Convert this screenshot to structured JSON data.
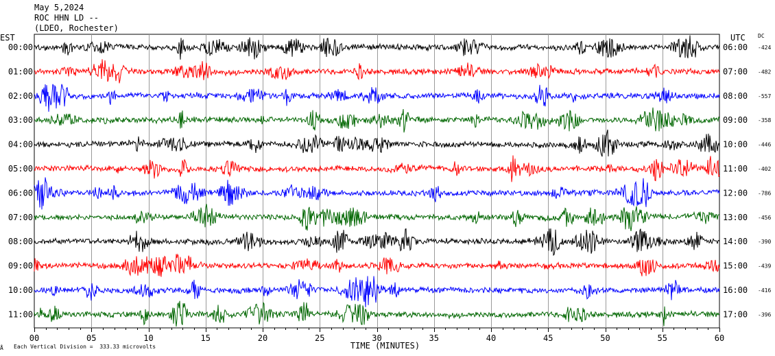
{
  "header": {
    "date": "May 5,2024",
    "station": "ROC HHN LD --",
    "network": "(LDEO, Rochester)"
  },
  "left_zone": "EST",
  "right_zone": "UTC",
  "dc_label": "DC",
  "footer": {
    "mark": "Å",
    "scale_note": "Each Vertical Division =  333.33 microvolts"
  },
  "chart_data": {
    "type": "line",
    "xlabel": "TIME (MINUTES)",
    "xlim": [
      0,
      60
    ],
    "x_ticks": [
      "00",
      "05",
      "10",
      "15",
      "20",
      "25",
      "30",
      "35",
      "40",
      "45",
      "50",
      "55",
      "60"
    ],
    "trace_colors": [
      "#000000",
      "#ff0000",
      "#0000ff",
      "#006600"
    ],
    "rows": [
      {
        "est": "00:00",
        "utc": "06:00",
        "dc": "-424"
      },
      {
        "est": "01:00",
        "utc": "07:00",
        "dc": "-482"
      },
      {
        "est": "02:00",
        "utc": "08:00",
        "dc": "-557"
      },
      {
        "est": "03:00",
        "utc": "09:00",
        "dc": "-358"
      },
      {
        "est": "04:00",
        "utc": "10:00",
        "dc": "-446"
      },
      {
        "est": "05:00",
        "utc": "11:00",
        "dc": "-402"
      },
      {
        "est": "06:00",
        "utc": "12:00",
        "dc": "-786"
      },
      {
        "est": "07:00",
        "utc": "13:00",
        "dc": "-456"
      },
      {
        "est": "08:00",
        "utc": "14:00",
        "dc": "-390"
      },
      {
        "est": "09:00",
        "utc": "15:00",
        "dc": "-439"
      },
      {
        "est": "10:00",
        "utc": "16:00",
        "dc": "-416"
      },
      {
        "est": "11:00",
        "utc": "17:00",
        "dc": "-396"
      }
    ]
  }
}
